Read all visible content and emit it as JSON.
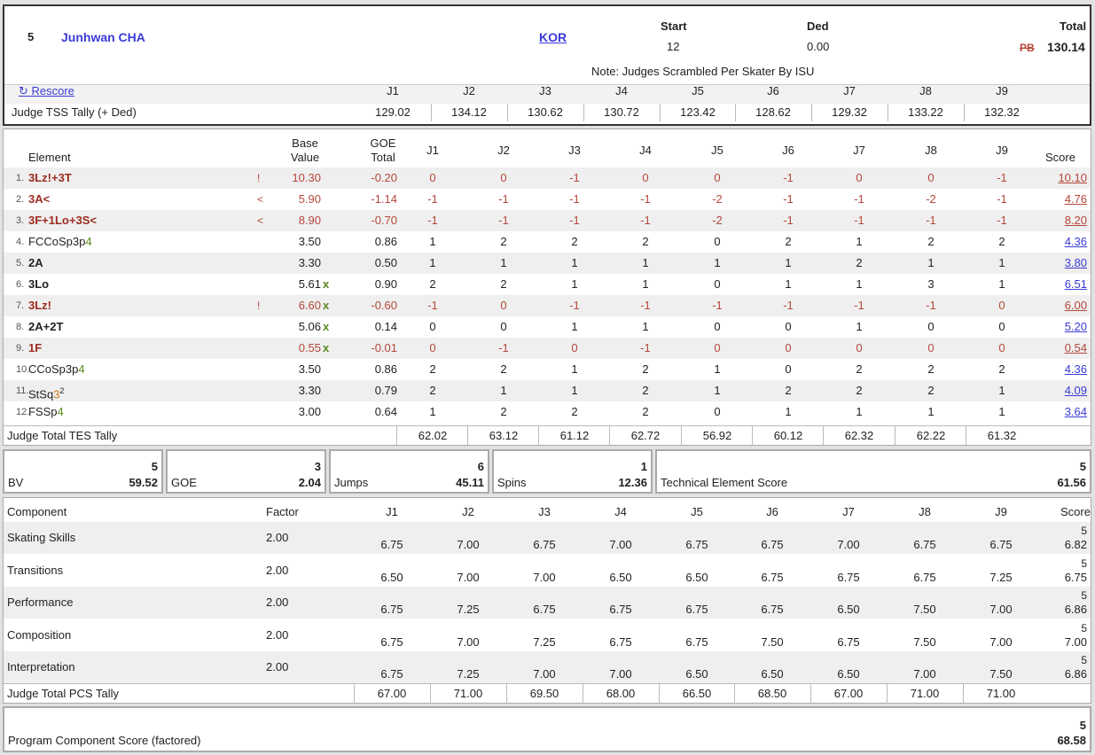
{
  "header": {
    "rank": "5",
    "skater": "Junhwan CHA",
    "nation": "KOR",
    "start_label": "Start",
    "start": "12",
    "ded_label": "Ded",
    "ded": "0.00",
    "total_label": "Total",
    "pb": "PB",
    "total": "130.14",
    "note": "Note: Judges Scrambled Per Skater By ISU",
    "rescore": "↻ Rescore",
    "judges": [
      "J1",
      "J2",
      "J3",
      "J4",
      "J5",
      "J6",
      "J7",
      "J8",
      "J9"
    ],
    "tss_label": "Judge TSS Tally (+ Ded)",
    "tss": [
      "129.02",
      "134.12",
      "130.62",
      "130.72",
      "123.42",
      "128.62",
      "129.32",
      "133.22",
      "132.32"
    ]
  },
  "elements": {
    "headers": {
      "element": "Element",
      "base1": "Base",
      "base2": "Value",
      "goe1": "GOE",
      "goe2": "Total",
      "score": "Score"
    },
    "rows": [
      {
        "num": "1.",
        "name": "3Lz!+3T",
        "suffix": "",
        "sup": "",
        "flag": "!",
        "bv": "10.30",
        "x": "",
        "goe": "-0.20",
        "j": [
          "0",
          "0",
          "-1",
          "0",
          "0",
          "-1",
          "0",
          "0",
          "-1"
        ],
        "score": "10.10",
        "red": true
      },
      {
        "num": "2.",
        "name": "3A<",
        "suffix": "",
        "sup": "",
        "flag": "<",
        "bv": "5.90",
        "x": "",
        "goe": "-1.14",
        "j": [
          "-1",
          "-1",
          "-1",
          "-1",
          "-2",
          "-1",
          "-1",
          "-2",
          "-1"
        ],
        "score": "4.76",
        "red": true
      },
      {
        "num": "3.",
        "name": "3F+1Lo+3S<",
        "suffix": "",
        "sup": "",
        "flag": "<",
        "bv": "8.90",
        "x": "",
        "goe": "-0.70",
        "j": [
          "-1",
          "-1",
          "-1",
          "-1",
          "-2",
          "-1",
          "-1",
          "-1",
          "-1"
        ],
        "score": "8.20",
        "red": true
      },
      {
        "num": "4.",
        "name": "FCCoSp3p",
        "suffix": "4",
        "sup": "",
        "flag": "",
        "bv": "3.50",
        "x": "",
        "goe": "0.86",
        "j": [
          "1",
          "2",
          "2",
          "2",
          "0",
          "2",
          "1",
          "2",
          "2"
        ],
        "score": "4.36",
        "red": false
      },
      {
        "num": "5.",
        "name": "2A",
        "suffix": "",
        "sup": "",
        "flag": "",
        "bv": "3.30",
        "x": "",
        "goe": "0.50",
        "j": [
          "1",
          "1",
          "1",
          "1",
          "1",
          "1",
          "2",
          "1",
          "1"
        ],
        "score": "3.80",
        "red": false
      },
      {
        "num": "6.",
        "name": "3Lo",
        "suffix": "",
        "sup": "",
        "flag": "",
        "bv": "5.61",
        "x": "x",
        "goe": "0.90",
        "j": [
          "2",
          "2",
          "1",
          "1",
          "0",
          "1",
          "1",
          "3",
          "1"
        ],
        "score": "6.51",
        "red": false
      },
      {
        "num": "7.",
        "name": "3Lz!",
        "suffix": "",
        "sup": "",
        "flag": "!",
        "bv": "6.60",
        "x": "x",
        "goe": "-0.60",
        "j": [
          "-1",
          "0",
          "-1",
          "-1",
          "-1",
          "-1",
          "-1",
          "-1",
          "0"
        ],
        "score": "6.00",
        "red": true
      },
      {
        "num": "8.",
        "name": "2A+2T",
        "suffix": "",
        "sup": "",
        "flag": "",
        "bv": "5.06",
        "x": "x",
        "goe": "0.14",
        "j": [
          "0",
          "0",
          "1",
          "1",
          "0",
          "0",
          "1",
          "0",
          "0"
        ],
        "score": "5.20",
        "red": false
      },
      {
        "num": "9.",
        "name": "1F",
        "suffix": "",
        "sup": "",
        "flag": "",
        "bv": "0.55",
        "x": "x",
        "goe": "-0.01",
        "j": [
          "0",
          "-1",
          "0",
          "-1",
          "0",
          "0",
          "0",
          "0",
          "0"
        ],
        "score": "0.54",
        "red": true
      },
      {
        "num": "10.",
        "name": "CCoSp3p",
        "suffix": "4",
        "sup": "",
        "flag": "",
        "bv": "3.50",
        "x": "",
        "goe": "0.86",
        "j": [
          "2",
          "2",
          "1",
          "2",
          "1",
          "0",
          "2",
          "2",
          "2"
        ],
        "score": "4.36",
        "red": false
      },
      {
        "num": "11.",
        "name": "StSq",
        "suffix": "3",
        "sup": "2",
        "flag": "",
        "bv": "3.30",
        "x": "",
        "goe": "0.79",
        "j": [
          "2",
          "1",
          "1",
          "2",
          "1",
          "2",
          "2",
          "2",
          "1"
        ],
        "score": "4.09",
        "red": false
      },
      {
        "num": "12.",
        "name": "FSSp",
        "suffix": "4",
        "sup": "",
        "flag": "",
        "bv": "3.00",
        "x": "",
        "goe": "0.64",
        "j": [
          "1",
          "2",
          "2",
          "2",
          "0",
          "1",
          "1",
          "1",
          "1"
        ],
        "score": "3.64",
        "red": false
      }
    ],
    "tes_label": "Judge Total TES Tally",
    "tes": [
      "62.02",
      "63.12",
      "61.12",
      "62.72",
      "56.92",
      "60.12",
      "62.32",
      "62.22",
      "61.32"
    ]
  },
  "tally": {
    "bv": {
      "label": "BV",
      "rank": "5",
      "value": "59.52"
    },
    "goe": {
      "label": "GOE",
      "rank": "3",
      "value": "2.04"
    },
    "jumps": {
      "label": "Jumps",
      "rank": "6",
      "value": "45.11"
    },
    "spins": {
      "label": "Spins",
      "rank": "1",
      "value": "12.36"
    },
    "tes": {
      "label": "Technical Element Score",
      "rank": "5",
      "value": "61.56"
    }
  },
  "components": {
    "headers": {
      "component": "Component",
      "factor": "Factor",
      "score": "Score"
    },
    "rows": [
      {
        "name": "Skating Skills",
        "factor": "2.00",
        "j": [
          "6.75",
          "7.00",
          "6.75",
          "7.00",
          "6.75",
          "6.75",
          "7.00",
          "6.75",
          "6.75"
        ],
        "rank": "5",
        "score": "6.82"
      },
      {
        "name": "Transitions",
        "factor": "2.00",
        "j": [
          "6.50",
          "7.00",
          "7.00",
          "6.50",
          "6.50",
          "6.75",
          "6.75",
          "6.75",
          "7.25"
        ],
        "rank": "5",
        "score": "6.75"
      },
      {
        "name": "Performance",
        "factor": "2.00",
        "j": [
          "6.75",
          "7.25",
          "6.75",
          "6.75",
          "6.75",
          "6.75",
          "6.50",
          "7.50",
          "7.00"
        ],
        "rank": "5",
        "score": "6.86"
      },
      {
        "name": "Composition",
        "factor": "2.00",
        "j": [
          "6.75",
          "7.00",
          "7.25",
          "6.75",
          "6.75",
          "7.50",
          "6.75",
          "7.50",
          "7.00"
        ],
        "rank": "5",
        "score": "7.00"
      },
      {
        "name": "Interpretation",
        "factor": "2.00",
        "j": [
          "6.75",
          "7.25",
          "7.00",
          "7.00",
          "6.50",
          "6.50",
          "6.50",
          "7.00",
          "7.50"
        ],
        "rank": "5",
        "score": "6.86"
      }
    ],
    "pcs_label": "Judge Total PCS Tally",
    "pcs": [
      "67.00",
      "71.00",
      "69.50",
      "68.00",
      "66.50",
      "68.50",
      "67.00",
      "71.00",
      "71.00"
    ]
  },
  "program_component": {
    "label": "Program Component Score (factored)",
    "rank": "5",
    "value": "68.58"
  }
}
